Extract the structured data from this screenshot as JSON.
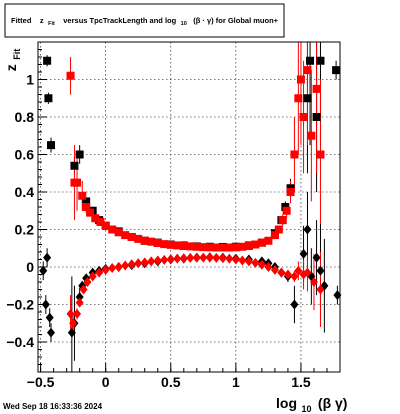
{
  "title": {
    "part1": "Fitted",
    "z": "z",
    "z_sub": "Fit",
    "part2": "versus TpcTrackLength and log",
    "log_sub": "10",
    "part3": "(β · γ) for Global muon+"
  },
  "date": "Wed Sep 18 16:33:36 2024",
  "chart_data": {
    "type": "scatter",
    "title": "Fitted z_Fit versus TpcTrackLength and log10(β·γ) for Global muon+",
    "xlabel": "log10(β γ)",
    "ylabel": "z_Fit",
    "xlim": [
      -0.52,
      1.8
    ],
    "ylim": [
      -0.56,
      1.2
    ],
    "x_ticks": [
      -0.5,
      0,
      0.5,
      1,
      1.5
    ],
    "x_tick_labels": [
      "−0.5",
      "0",
      "0.5",
      "1",
      "1.5"
    ],
    "y_ticks": [
      -0.4,
      -0.2,
      0,
      0.2,
      0.4,
      0.6,
      0.8,
      1
    ],
    "y_tick_labels": [
      "−0.4",
      "−0.2",
      "0",
      "0.2",
      "0.4",
      "0.6",
      "0.8",
      "1"
    ],
    "grid": true,
    "series": [
      {
        "color": "#000000",
        "marker": "square",
        "points": [
          [
            -0.45,
            1.1,
            0.03
          ],
          [
            -0.44,
            0.9,
            0.03
          ],
          [
            -0.42,
            0.65,
            0.04
          ],
          [
            -0.24,
            0.54,
            0.05
          ],
          [
            -0.2,
            0.6,
            0.05
          ],
          [
            -0.15,
            0.35,
            0.02
          ],
          [
            -0.1,
            0.3,
            0.01
          ],
          [
            -0.05,
            0.25,
            0.005
          ],
          [
            0.0,
            0.22,
            0.004
          ],
          [
            0.1,
            0.19,
            0.003
          ],
          [
            0.2,
            0.16,
            0.003
          ],
          [
            0.3,
            0.14,
            0.002
          ],
          [
            0.4,
            0.13,
            0.002
          ],
          [
            0.5,
            0.12,
            0.002
          ],
          [
            0.6,
            0.115,
            0.002
          ],
          [
            0.7,
            0.11,
            0.002
          ],
          [
            0.8,
            0.108,
            0.002
          ],
          [
            0.9,
            0.107,
            0.002
          ],
          [
            1.0,
            0.108,
            0.003
          ],
          [
            1.1,
            0.115,
            0.004
          ],
          [
            1.2,
            0.13,
            0.005
          ],
          [
            1.3,
            0.18,
            0.01
          ],
          [
            1.35,
            0.25,
            0.02
          ],
          [
            1.38,
            0.32,
            0.03
          ],
          [
            1.42,
            0.42,
            0.05
          ],
          [
            1.55,
            0.9,
            0.4
          ],
          [
            1.57,
            1.1,
            0.45
          ],
          [
            1.62,
            0.8,
            0.4
          ],
          [
            1.65,
            1.1,
            0.45
          ],
          [
            1.77,
            1.05,
            0.05
          ]
        ]
      },
      {
        "color": "#ff0000",
        "marker": "square",
        "points": [
          [
            -0.27,
            1.02,
            0.1
          ],
          [
            -0.24,
            0.45,
            0.2
          ],
          [
            -0.22,
            0.45,
            0.15
          ],
          [
            -0.18,
            0.38,
            0.08
          ],
          [
            -0.15,
            0.32,
            0.03
          ],
          [
            -0.12,
            0.29,
            0.02
          ],
          [
            -0.08,
            0.26,
            0.01
          ],
          [
            -0.04,
            0.24,
            0.006
          ],
          [
            0.0,
            0.22,
            0.005
          ],
          [
            0.05,
            0.2,
            0.004
          ],
          [
            0.1,
            0.185,
            0.003
          ],
          [
            0.15,
            0.17,
            0.003
          ],
          [
            0.2,
            0.16,
            0.003
          ],
          [
            0.25,
            0.15,
            0.002
          ],
          [
            0.3,
            0.14,
            0.002
          ],
          [
            0.35,
            0.135,
            0.002
          ],
          [
            0.4,
            0.128,
            0.002
          ],
          [
            0.45,
            0.122,
            0.002
          ],
          [
            0.5,
            0.118,
            0.002
          ],
          [
            0.55,
            0.115,
            0.002
          ],
          [
            0.6,
            0.112,
            0.002
          ],
          [
            0.65,
            0.11,
            0.002
          ],
          [
            0.7,
            0.108,
            0.002
          ],
          [
            0.75,
            0.106,
            0.002
          ],
          [
            0.8,
            0.105,
            0.002
          ],
          [
            0.85,
            0.104,
            0.002
          ],
          [
            0.9,
            0.104,
            0.002
          ],
          [
            0.95,
            0.104,
            0.002
          ],
          [
            1.0,
            0.105,
            0.003
          ],
          [
            1.05,
            0.108,
            0.003
          ],
          [
            1.1,
            0.112,
            0.004
          ],
          [
            1.15,
            0.12,
            0.005
          ],
          [
            1.2,
            0.13,
            0.006
          ],
          [
            1.25,
            0.14,
            0.008
          ],
          [
            1.3,
            0.17,
            0.01
          ],
          [
            1.33,
            0.2,
            0.02
          ],
          [
            1.36,
            0.25,
            0.03
          ],
          [
            1.39,
            0.3,
            0.04
          ],
          [
            1.42,
            0.4,
            0.06
          ],
          [
            1.45,
            0.6,
            0.2
          ],
          [
            1.48,
            0.9,
            0.3
          ],
          [
            1.5,
            1.0,
            0.35
          ],
          [
            1.52,
            0.8,
            0.3
          ],
          [
            1.55,
            1.05,
            0.4
          ],
          [
            1.58,
            0.7,
            0.35
          ],
          [
            1.62,
            0.95,
            0.45
          ],
          [
            1.65,
            0.6,
            0.4
          ]
        ]
      },
      {
        "color": "#000000",
        "marker": "diamond",
        "points": [
          [
            -0.48,
            -0.02,
            0.05
          ],
          [
            -0.46,
            -0.2,
            0.05
          ],
          [
            -0.45,
            0.05,
            0.05
          ],
          [
            -0.43,
            -0.27,
            0.05
          ],
          [
            -0.42,
            -0.35,
            0.05
          ],
          [
            -0.26,
            -0.35,
            0.3
          ],
          [
            -0.24,
            -0.3,
            0.2
          ],
          [
            -0.2,
            -0.16,
            0.05
          ],
          [
            -0.18,
            -0.1,
            0.02
          ],
          [
            -0.15,
            -0.06,
            0.01
          ],
          [
            -0.1,
            -0.03,
            0.005
          ],
          [
            -0.05,
            -0.02,
            0.004
          ],
          [
            0.0,
            -0.01,
            0.003
          ],
          [
            0.1,
            0.0,
            0.003
          ],
          [
            0.2,
            0.01,
            0.003
          ],
          [
            0.3,
            0.02,
            0.002
          ],
          [
            0.4,
            0.03,
            0.002
          ],
          [
            0.5,
            0.04,
            0.002
          ],
          [
            0.6,
            0.045,
            0.002
          ],
          [
            0.7,
            0.05,
            0.002
          ],
          [
            0.8,
            0.052,
            0.002
          ],
          [
            0.9,
            0.05,
            0.002
          ],
          [
            1.0,
            0.045,
            0.002
          ],
          [
            1.1,
            0.04,
            0.003
          ],
          [
            1.2,
            0.03,
            0.004
          ],
          [
            1.25,
            0.02,
            0.005
          ],
          [
            1.3,
            0.0,
            0.01
          ],
          [
            1.35,
            -0.03,
            0.02
          ],
          [
            1.4,
            -0.05,
            0.03
          ],
          [
            1.45,
            -0.2,
            0.1
          ],
          [
            1.52,
            0.07,
            0.15
          ],
          [
            1.55,
            0.2,
            0.2
          ],
          [
            1.58,
            -0.05,
            0.15
          ],
          [
            1.62,
            0.05,
            0.2
          ],
          [
            1.65,
            -0.02,
            0.25
          ],
          [
            1.68,
            -0.1,
            0.25
          ],
          [
            1.78,
            -0.15,
            0.05
          ]
        ]
      },
      {
        "color": "#ff0000",
        "marker": "diamond",
        "points": [
          [
            -0.27,
            -0.25,
            0.1
          ],
          [
            -0.25,
            -0.3,
            0.05
          ],
          [
            -0.22,
            -0.25,
            0.03
          ],
          [
            -0.2,
            -0.19,
            0.02
          ],
          [
            -0.17,
            -0.12,
            0.01
          ],
          [
            -0.14,
            -0.08,
            0.008
          ],
          [
            -0.1,
            -0.05,
            0.005
          ],
          [
            -0.05,
            -0.03,
            0.004
          ],
          [
            0.0,
            -0.015,
            0.003
          ],
          [
            0.05,
            -0.005,
            0.003
          ],
          [
            0.1,
            0.0,
            0.003
          ],
          [
            0.15,
            0.008,
            0.002
          ],
          [
            0.2,
            0.015,
            0.002
          ],
          [
            0.25,
            0.02,
            0.002
          ],
          [
            0.3,
            0.025,
            0.002
          ],
          [
            0.35,
            0.03,
            0.002
          ],
          [
            0.4,
            0.035,
            0.002
          ],
          [
            0.45,
            0.038,
            0.002
          ],
          [
            0.5,
            0.042,
            0.002
          ],
          [
            0.55,
            0.045,
            0.002
          ],
          [
            0.6,
            0.047,
            0.002
          ],
          [
            0.65,
            0.049,
            0.002
          ],
          [
            0.7,
            0.05,
            0.002
          ],
          [
            0.75,
            0.05,
            0.002
          ],
          [
            0.8,
            0.05,
            0.002
          ],
          [
            0.85,
            0.049,
            0.002
          ],
          [
            0.9,
            0.047,
            0.002
          ],
          [
            0.95,
            0.045,
            0.002
          ],
          [
            1.0,
            0.04,
            0.002
          ],
          [
            1.05,
            0.035,
            0.003
          ],
          [
            1.1,
            0.03,
            0.003
          ],
          [
            1.15,
            0.022,
            0.004
          ],
          [
            1.2,
            0.012,
            0.005
          ],
          [
            1.25,
            0.0,
            0.006
          ],
          [
            1.3,
            -0.015,
            0.01
          ],
          [
            1.35,
            -0.03,
            0.015
          ],
          [
            1.4,
            -0.04,
            0.02
          ],
          [
            1.45,
            -0.05,
            0.03
          ],
          [
            1.48,
            -0.02,
            0.05
          ],
          [
            1.52,
            -0.04,
            0.08
          ],
          [
            1.55,
            -0.03,
            0.1
          ],
          [
            1.6,
            -0.08,
            0.15
          ],
          [
            1.65,
            -0.12,
            0.2
          ]
        ]
      }
    ]
  }
}
